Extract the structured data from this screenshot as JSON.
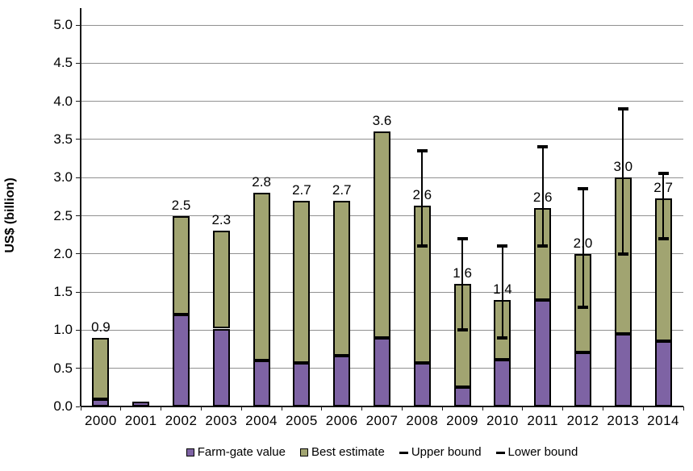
{
  "chart_data": {
    "type": "bar",
    "subtype": "stacked-with-error-bars",
    "title": "",
    "xlabel": "",
    "ylabel": "US$ (billion)",
    "ylim": [
      0.0,
      5.0
    ],
    "ytick_step": 0.5,
    "ytick_labels": [
      "0.0",
      "0.5",
      "1.0",
      "1.5",
      "2.0",
      "2.5",
      "3.0",
      "3.5",
      "4.0",
      "4.5",
      "5.0"
    ],
    "grid": true,
    "legend_position": "bottom",
    "categories": [
      "2000",
      "2001",
      "2002",
      "2003",
      "2004",
      "2005",
      "2006",
      "2007",
      "2008",
      "2009",
      "2010",
      "2011",
      "2012",
      "2013",
      "2014"
    ],
    "series": [
      {
        "name": "Farm-gate value",
        "color": "#7E63A4",
        "values": [
          0.1,
          0.06,
          1.2,
          1.02,
          0.6,
          0.57,
          0.67,
          0.9,
          0.57,
          0.25,
          0.61,
          1.4,
          0.71,
          0.95,
          0.86
        ]
      },
      {
        "name": "Best estimate",
        "color": "#A1A471",
        "values": [
          0.8,
          0.0,
          1.3,
          1.28,
          2.2,
          2.13,
          2.03,
          2.7,
          2.06,
          1.36,
          0.79,
          1.2,
          1.29,
          2.05,
          1.87
        ]
      }
    ],
    "stack_totals": [
      0.9,
      0.06,
      2.5,
      2.3,
      2.8,
      2.7,
      2.7,
      3.6,
      2.63,
      1.61,
      1.4,
      2.6,
      2.0,
      3.0,
      2.73
    ],
    "bar_total_labels": [
      "0.9",
      "",
      "2.5",
      "2.3",
      "2.8",
      "2.7",
      "2.7",
      "3.6",
      "2.6",
      "1.6",
      "1.4",
      "2.6",
      "2.0",
      "3.0",
      "2.7"
    ],
    "error_bars": {
      "upper_name": "Upper bound",
      "lower_name": "Lower bound",
      "upper": [
        null,
        null,
        null,
        null,
        null,
        null,
        null,
        null,
        3.35,
        2.2,
        2.1,
        3.4,
        2.85,
        3.9,
        3.05
      ],
      "lower": [
        null,
        null,
        null,
        null,
        null,
        null,
        null,
        null,
        2.1,
        1.0,
        0.9,
        2.1,
        1.3,
        2.0,
        2.2
      ]
    },
    "colors": {
      "farm_gate": "#7E63A4",
      "best_estimate": "#A1A471",
      "bar_border": "#000000",
      "gridline": "#919191",
      "axis": "#1a1a1a",
      "error_bar": "#000000",
      "text": "#000000",
      "background": "#ffffff"
    }
  },
  "legend": {
    "items": [
      {
        "label": "Farm-gate value",
        "swatch": "square",
        "color": "#7E63A4"
      },
      {
        "label": "Best estimate",
        "swatch": "square",
        "color": "#A1A471"
      },
      {
        "label": "Upper bound",
        "swatch": "dash",
        "color": "#000000"
      },
      {
        "label": "Lower bound",
        "swatch": "dash",
        "color": "#000000"
      }
    ]
  }
}
